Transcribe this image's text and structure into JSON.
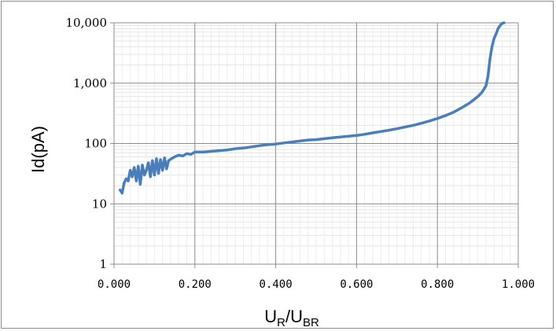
{
  "chart_data": {
    "type": "line",
    "xlabel": {
      "base1": "U",
      "sub1": "R",
      "slash": "/",
      "base2": "U",
      "sub2": "BR"
    },
    "ylabel": "Id(pA)",
    "xlim": [
      0,
      1
    ],
    "ylim": [
      1,
      10000
    ],
    "y_scale": "log",
    "grid": true,
    "x_ticks": [
      "0.000",
      "0.200",
      "0.400",
      "0.600",
      "0.800",
      "1.000"
    ],
    "x_tick_values": [
      0,
      0.2,
      0.4,
      0.6,
      0.8,
      1.0
    ],
    "y_ticks": [
      "1",
      "10",
      "100",
      "1,000",
      "10,000"
    ],
    "y_tick_values": [
      1,
      10,
      100,
      1000,
      10000
    ],
    "series_color": "#4a7ebb",
    "x": [
      0.015,
      0.02,
      0.025,
      0.03,
      0.035,
      0.04,
      0.045,
      0.05,
      0.055,
      0.06,
      0.065,
      0.07,
      0.075,
      0.08,
      0.085,
      0.09,
      0.095,
      0.1,
      0.105,
      0.11,
      0.115,
      0.12,
      0.125,
      0.13,
      0.135,
      0.14,
      0.15,
      0.16,
      0.17,
      0.18,
      0.19,
      0.2,
      0.22,
      0.24,
      0.26,
      0.28,
      0.3,
      0.32,
      0.34,
      0.36,
      0.38,
      0.4,
      0.42,
      0.44,
      0.46,
      0.48,
      0.5,
      0.52,
      0.54,
      0.56,
      0.58,
      0.6,
      0.62,
      0.64,
      0.66,
      0.68,
      0.7,
      0.72,
      0.74,
      0.76,
      0.78,
      0.8,
      0.82,
      0.84,
      0.86,
      0.88,
      0.9,
      0.91,
      0.92,
      0.925,
      0.93,
      0.935,
      0.94,
      0.945,
      0.95,
      0.955,
      0.96,
      0.965
    ],
    "y": [
      17,
      15,
      22,
      26,
      24,
      36,
      28,
      40,
      24,
      42,
      21,
      44,
      30,
      36,
      48,
      28,
      52,
      30,
      56,
      32,
      54,
      36,
      58,
      38,
      52,
      55,
      60,
      64,
      62,
      68,
      66,
      72,
      72,
      74,
      76,
      78,
      82,
      84,
      88,
      92,
      96,
      98,
      102,
      106,
      110,
      114,
      116,
      120,
      124,
      128,
      132,
      136,
      142,
      150,
      158,
      166,
      176,
      188,
      200,
      216,
      236,
      260,
      290,
      330,
      390,
      470,
      600,
      700,
      900,
      1300,
      2500,
      4000,
      5500,
      6500,
      8000,
      9000,
      9800,
      10000
    ]
  }
}
